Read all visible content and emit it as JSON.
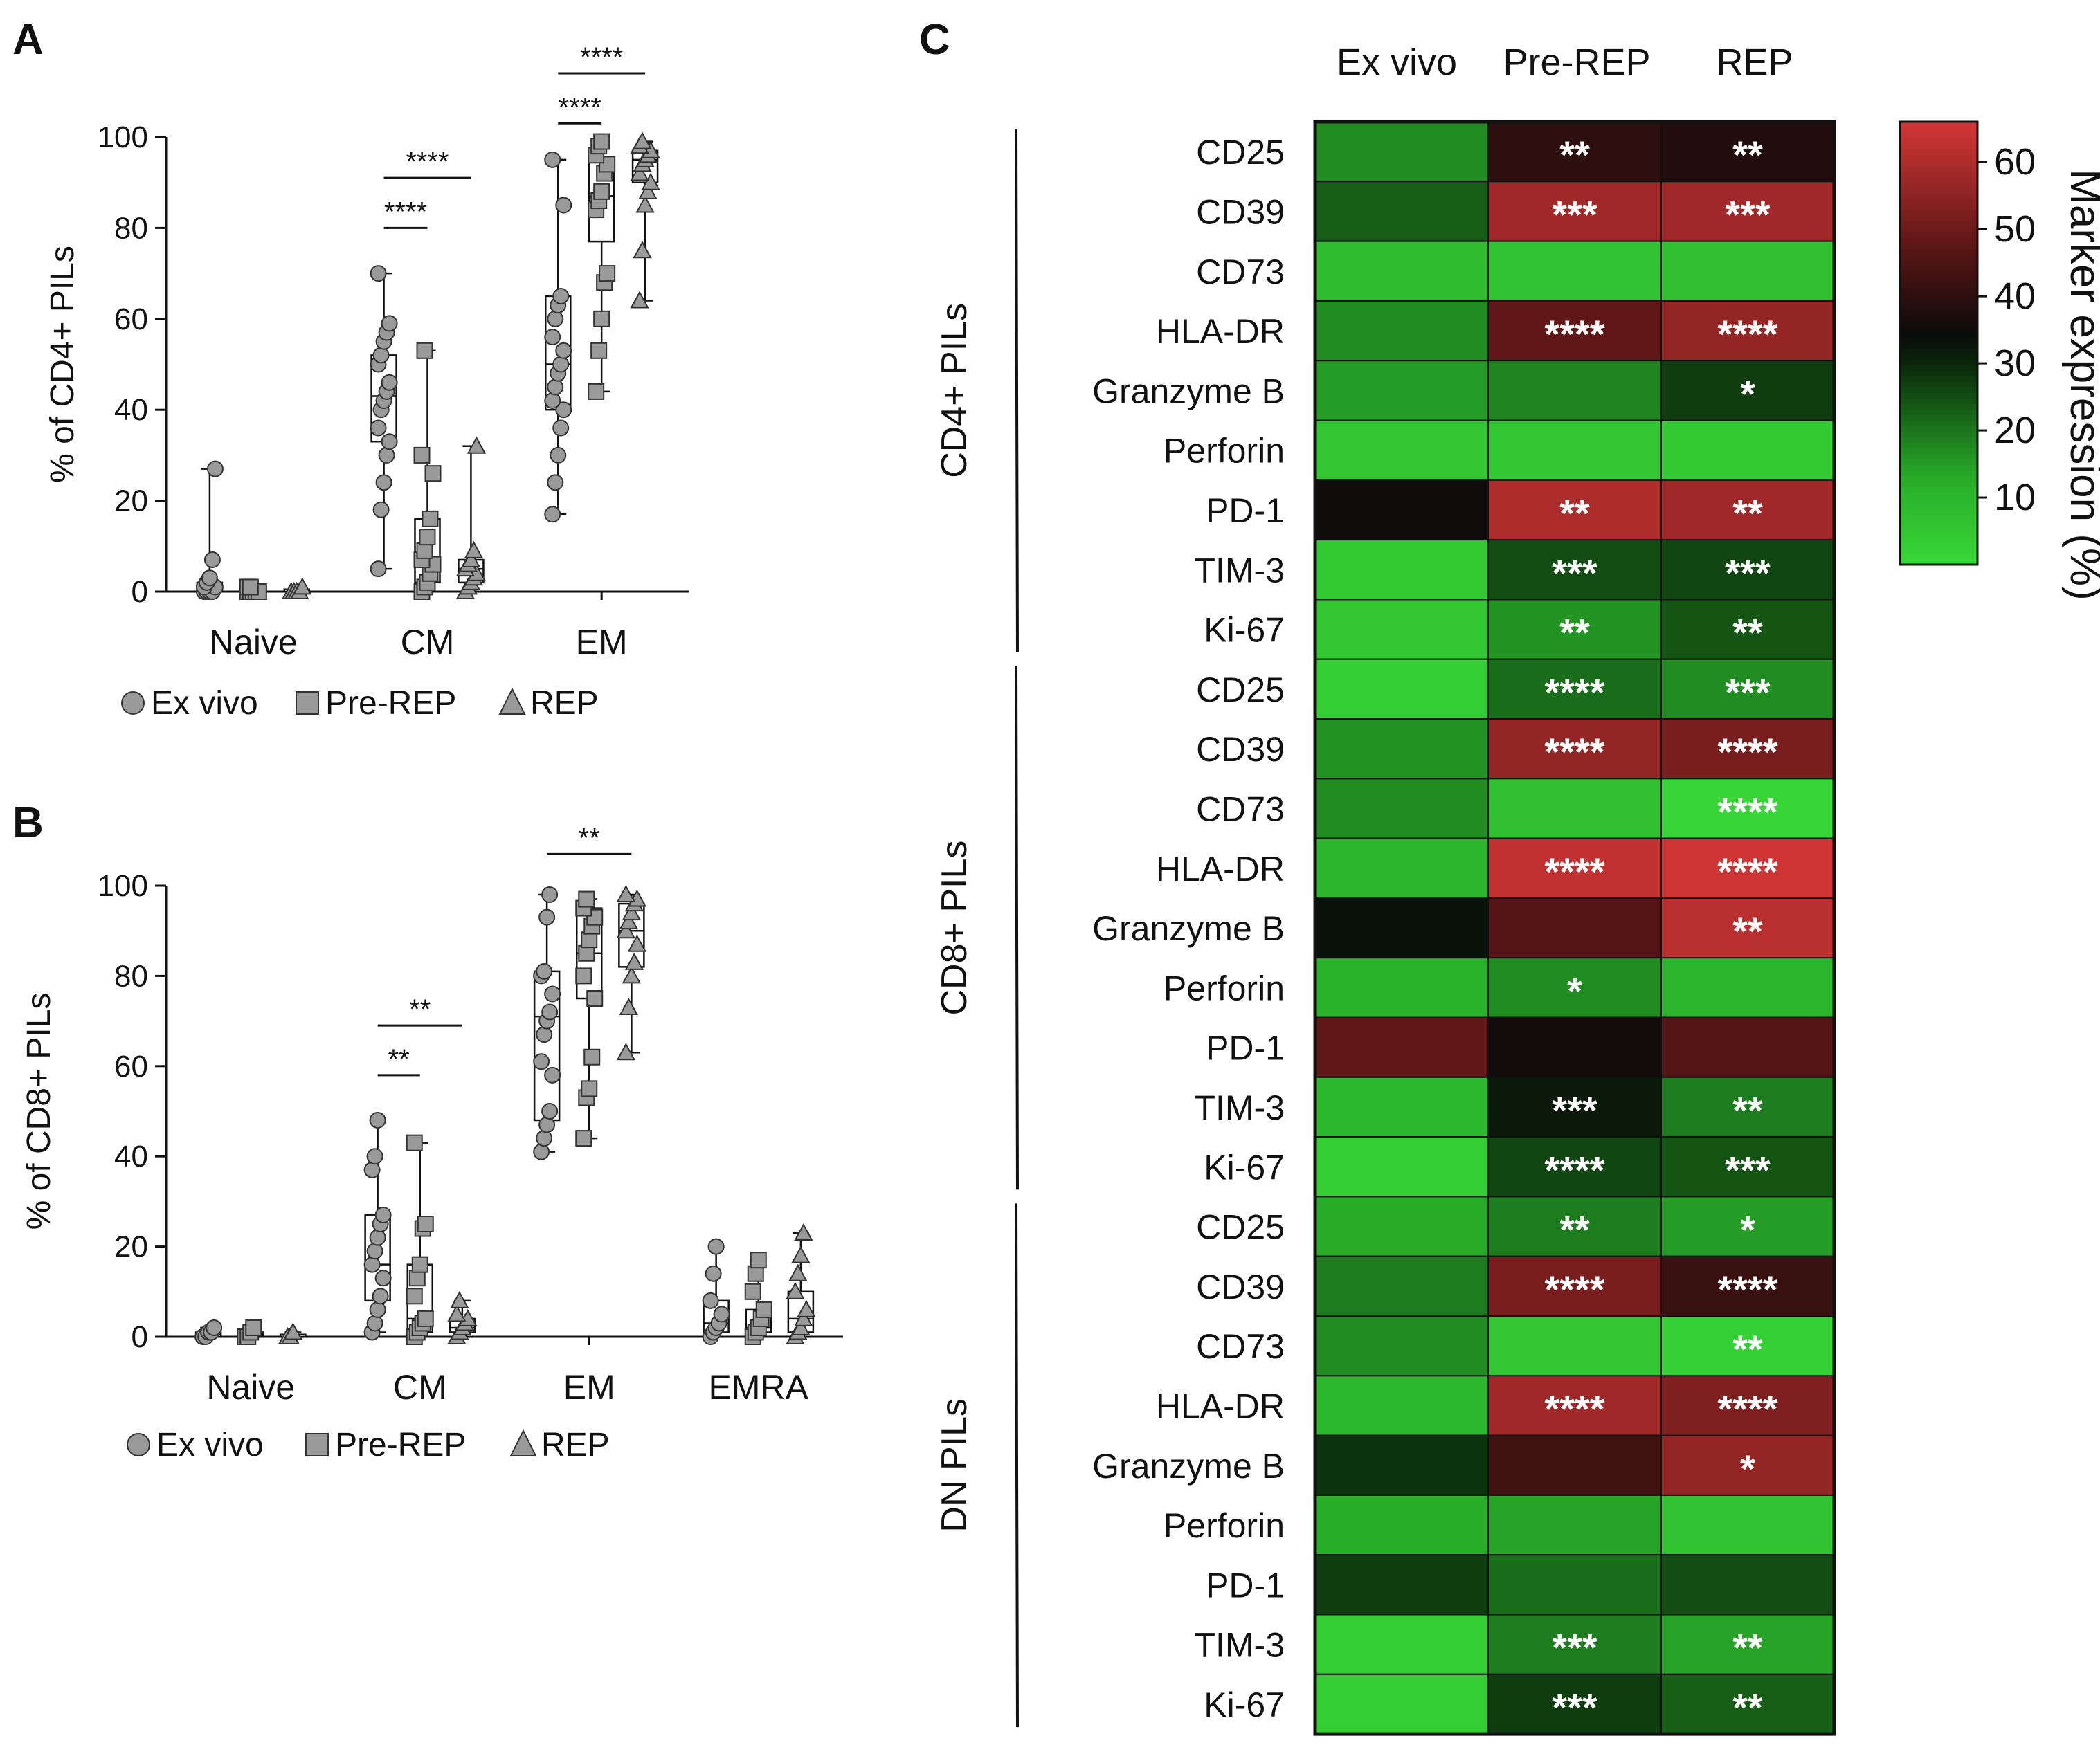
{
  "panels": {
    "a": {
      "letter": "A"
    },
    "b": {
      "letter": "B"
    },
    "c": {
      "letter": "C"
    }
  },
  "legend": {
    "ex_vivo": "Ex vivo",
    "pre_rep": "Pre-REP",
    "rep": "REP"
  },
  "chart_data": [
    {
      "type": "box",
      "id": "A",
      "ylabel": "% of CD4+ PILs",
      "ylim": [
        0,
        100
      ],
      "yticks": [
        0,
        20,
        40,
        60,
        80,
        100
      ],
      "categories": [
        "Naive",
        "CM",
        "EM"
      ],
      "series": [
        {
          "name": "Ex vivo",
          "shape": "circle",
          "boxes": [
            {
              "min": 0,
              "q1": 0,
              "median": 1,
              "q3": 2,
              "max": 27,
              "points": [
                0,
                0,
                0,
                0,
                1,
                1,
                2,
                3,
                7,
                27
              ]
            },
            {
              "min": 5,
              "q1": 33,
              "median": 43,
              "q3": 52,
              "max": 70,
              "points": [
                5,
                18,
                24,
                30,
                33,
                36,
                40,
                42,
                44,
                46,
                50,
                52,
                55,
                57,
                59,
                70
              ]
            },
            {
              "min": 17,
              "q1": 40,
              "median": 50,
              "q3": 65,
              "max": 95,
              "points": [
                17,
                24,
                30,
                36,
                40,
                42,
                45,
                48,
                50,
                53,
                56,
                60,
                63,
                65,
                85,
                95
              ]
            }
          ]
        },
        {
          "name": "Pre-REP",
          "shape": "square",
          "boxes": [
            {
              "min": 0,
              "q1": 0,
              "median": 0,
              "q3": 1,
              "max": 1,
              "points": [
                0,
                0,
                0,
                0,
                0,
                1,
                1
              ]
            },
            {
              "min": 0,
              "q1": 2,
              "median": 7,
              "q3": 16,
              "max": 53,
              "points": [
                0,
                1,
                2,
                4,
                6,
                7,
                9,
                12,
                16,
                26,
                30,
                53
              ]
            },
            {
              "min": 44,
              "q1": 77,
              "median": 87,
              "q3": 95,
              "max": 99,
              "points": [
                44,
                53,
                60,
                68,
                70,
                84,
                86,
                88,
                92,
                94,
                96,
                98,
                99
              ]
            }
          ]
        },
        {
          "name": "REP",
          "shape": "triangle",
          "boxes": [
            {
              "min": 0,
              "q1": 0,
              "median": 0,
              "q3": 0.5,
              "max": 1,
              "points": [
                0,
                0,
                0,
                0,
                1
              ]
            },
            {
              "min": 0,
              "q1": 2,
              "median": 5,
              "q3": 7,
              "max": 32,
              "points": [
                0,
                1,
                2,
                3,
                4,
                5,
                6,
                7,
                9,
                32
              ]
            },
            {
              "min": 64,
              "q1": 90,
              "median": 95,
              "q3": 97,
              "max": 99,
              "points": [
                64,
                75,
                85,
                88,
                90,
                92,
                94,
                95,
                96,
                97,
                98,
                99
              ]
            }
          ]
        }
      ],
      "significance": [
        {
          "group": 1,
          "from": 0,
          "to": 1,
          "y": 80,
          "label": "****"
        },
        {
          "group": 1,
          "from": 0,
          "to": 2,
          "y": 91,
          "label": "****"
        },
        {
          "group": 2,
          "from": 0,
          "to": 1,
          "y": 103,
          "label": "****"
        },
        {
          "group": 2,
          "from": 0,
          "to": 2,
          "y": 114,
          "label": "****"
        }
      ]
    },
    {
      "type": "box",
      "id": "B",
      "ylabel": "% of CD8+ PILs",
      "ylim": [
        0,
        100
      ],
      "yticks": [
        0,
        20,
        40,
        60,
        80,
        100
      ],
      "categories": [
        "Naive",
        "CM",
        "EM",
        "EMRA"
      ],
      "series": [
        {
          "name": "Ex vivo",
          "shape": "circle",
          "boxes": [
            {
              "min": 0,
              "q1": 0,
              "median": 0.5,
              "q3": 1,
              "max": 2,
              "points": [
                0,
                0,
                1,
                1,
                2
              ]
            },
            {
              "min": 1,
              "q1": 8,
              "median": 16,
              "q3": 27,
              "max": 48,
              "points": [
                1,
                3,
                6,
                9,
                13,
                16,
                19,
                22,
                25,
                27,
                37,
                40,
                48
              ]
            },
            {
              "min": 41,
              "q1": 48,
              "median": 71,
              "q3": 81,
              "max": 98,
              "points": [
                41,
                44,
                47,
                50,
                58,
                61,
                67,
                70,
                72,
                76,
                80,
                81,
                93,
                98
              ]
            },
            {
              "min": 0,
              "q1": 1,
              "median": 3,
              "q3": 8,
              "max": 20,
              "points": [
                0,
                1,
                2,
                3,
                5,
                8,
                14,
                20
              ]
            }
          ]
        },
        {
          "name": "Pre-REP",
          "shape": "square",
          "boxes": [
            {
              "min": 0,
              "q1": 0,
              "median": 0,
              "q3": 1,
              "max": 2,
              "points": [
                0,
                0,
                1,
                2
              ]
            },
            {
              "min": 0,
              "q1": 1,
              "median": 4,
              "q3": 16,
              "max": 43,
              "points": [
                0,
                1,
                2,
                3,
                4,
                9,
                13,
                16,
                24,
                25,
                43
              ]
            },
            {
              "min": 44,
              "q1": 75,
              "median": 85,
              "q3": 95,
              "max": 97,
              "points": [
                44,
                53,
                55,
                62,
                75,
                80,
                85,
                88,
                91,
                93,
                95,
                97
              ]
            },
            {
              "min": 0,
              "q1": 1,
              "median": 2,
              "q3": 6,
              "max": 17,
              "points": [
                0,
                1,
                2,
                4,
                6,
                10,
                14,
                17
              ]
            }
          ]
        },
        {
          "name": "REP",
          "shape": "triangle",
          "boxes": [
            {
              "min": 0,
              "q1": 0,
              "median": 0,
              "q3": 0.5,
              "max": 1,
              "points": [
                0,
                0,
                1
              ]
            },
            {
              "min": 0,
              "q1": 1,
              "median": 2,
              "q3": 4,
              "max": 8,
              "points": [
                0,
                1,
                2,
                3,
                4,
                5,
                8
              ]
            },
            {
              "min": 63,
              "q1": 82,
              "median": 90,
              "q3": 96,
              "max": 98,
              "points": [
                63,
                73,
                80,
                83,
                87,
                90,
                92,
                94,
                96,
                97,
                98
              ]
            },
            {
              "min": 0,
              "q1": 1,
              "median": 4,
              "q3": 10,
              "max": 23,
              "points": [
                0,
                1,
                2,
                4,
                6,
                10,
                14,
                18,
                23
              ]
            }
          ]
        }
      ],
      "significance": [
        {
          "group": 1,
          "from": 0,
          "to": 1,
          "y": 58,
          "label": "**"
        },
        {
          "group": 1,
          "from": 0,
          "to": 2,
          "y": 69,
          "label": "**"
        },
        {
          "group": 2,
          "from": 0,
          "to": 2,
          "y": 107,
          "label": "**"
        }
      ]
    },
    {
      "type": "heatmap",
      "id": "C",
      "columns": [
        "Ex vivo",
        "Pre-REP",
        "REP"
      ],
      "colorbar": {
        "label": "Marker expression (%)",
        "ticks": [
          10,
          20,
          30,
          40,
          50,
          60
        ],
        "min": 0,
        "max": 66
      },
      "groups": [
        {
          "name": "CD4+ PILs",
          "rows": [
            {
              "marker": "CD25",
              "values": [
                17,
                40,
                38
              ],
              "stars": [
                "",
                "**",
                "**"
              ]
            },
            {
              "marker": "CD39",
              "values": [
                23,
                58,
                58
              ],
              "stars": [
                "",
                "***",
                "***"
              ]
            },
            {
              "marker": "CD73",
              "values": [
                8,
                6,
                7
              ],
              "stars": [
                "",
                "",
                ""
              ]
            },
            {
              "marker": "HLA-DR",
              "values": [
                17,
                48,
                56
              ],
              "stars": [
                "",
                "****",
                "****"
              ]
            },
            {
              "marker": "Granzyme B",
              "values": [
                15,
                18,
                27
              ],
              "stars": [
                "",
                "",
                "*"
              ]
            },
            {
              "marker": "Perforin",
              "values": [
                5,
                5,
                4
              ],
              "stars": [
                "",
                "",
                ""
              ]
            },
            {
              "marker": "PD-1",
              "values": [
                35,
                60,
                58
              ],
              "stars": [
                "",
                "**",
                "**"
              ]
            },
            {
              "marker": "TIM-3",
              "values": [
                4,
                25,
                26
              ],
              "stars": [
                "",
                "***",
                "***"
              ]
            },
            {
              "marker": "Ki-67",
              "values": [
                5,
                16,
                24
              ],
              "stars": [
                "",
                "**",
                "**"
              ]
            }
          ]
        },
        {
          "name": "CD8+ PILs",
          "rows": [
            {
              "marker": "CD25",
              "values": [
                3,
                21,
                17
              ],
              "stars": [
                "",
                "****",
                "***"
              ]
            },
            {
              "marker": "CD39",
              "values": [
                16,
                56,
                52
              ],
              "stars": [
                "",
                "****",
                "****"
              ]
            },
            {
              "marker": "CD73",
              "values": [
                17,
                7,
                1
              ],
              "stars": [
                "",
                "",
                "****"
              ]
            },
            {
              "marker": "HLA-DR",
              "values": [
                10,
                63,
                65
              ],
              "stars": [
                "",
                "****",
                "****"
              ]
            },
            {
              "marker": "Granzyme B",
              "values": [
                33,
                46,
                62
              ],
              "stars": [
                "",
                "",
                "**"
              ]
            },
            {
              "marker": "Perforin",
              "values": [
                11,
                17,
                10
              ],
              "stars": [
                "",
                "*",
                ""
              ]
            },
            {
              "marker": "PD-1",
              "values": [
                48,
                36,
                46
              ],
              "stars": [
                "",
                "",
                ""
              ]
            },
            {
              "marker": "TIM-3",
              "values": [
                9,
                32,
                19
              ],
              "stars": [
                "",
                "***",
                "**"
              ]
            },
            {
              "marker": "Ki-67",
              "values": [
                3,
                26,
                24
              ],
              "stars": [
                "",
                "****",
                "***"
              ]
            }
          ]
        },
        {
          "name": "DN PILs",
          "rows": [
            {
              "marker": "CD25",
              "values": [
                13,
                19,
                15
              ],
              "stars": [
                "",
                "**",
                "*"
              ]
            },
            {
              "marker": "CD39",
              "values": [
                19,
                52,
                42
              ],
              "stars": [
                "",
                "****",
                "****"
              ]
            },
            {
              "marker": "CD73",
              "values": [
                17,
                5,
                2
              ],
              "stars": [
                "",
                "",
                "**"
              ]
            },
            {
              "marker": "HLA-DR",
              "values": [
                9,
                58,
                53
              ],
              "stars": [
                "",
                "****",
                "****"
              ]
            },
            {
              "marker": "Granzyme B",
              "values": [
                28,
                43,
                56
              ],
              "stars": [
                "",
                "",
                "*"
              ]
            },
            {
              "marker": "Perforin",
              "values": [
                12,
                14,
                6
              ],
              "stars": [
                "",
                "",
                ""
              ]
            },
            {
              "marker": "PD-1",
              "values": [
                27,
                21,
                25
              ],
              "stars": [
                "",
                "",
                ""
              ]
            },
            {
              "marker": "TIM-3",
              "values": [
                3,
                19,
                14
              ],
              "stars": [
                "",
                "***",
                "**"
              ]
            },
            {
              "marker": "Ki-67",
              "values": [
                3,
                27,
                23
              ],
              "stars": [
                "",
                "***",
                "**"
              ]
            }
          ]
        }
      ]
    }
  ]
}
